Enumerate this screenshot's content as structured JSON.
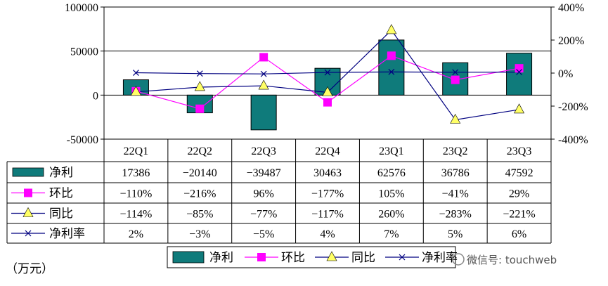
{
  "chart_data": {
    "type": "bar",
    "unit_label": "（万元）",
    "categories": [
      "22Q1",
      "22Q2",
      "22Q3",
      "22Q4",
      "23Q1",
      "23Q2",
      "23Q3"
    ],
    "left_axis": {
      "ticks": [
        "100000",
        "50000",
        "0",
        "-50000"
      ],
      "ylim": [
        -50000,
        100000
      ]
    },
    "right_axis": {
      "ticks": [
        "400%",
        "200%",
        "0%",
        "-200%",
        "-400%"
      ],
      "ylim": [
        -400,
        400
      ]
    },
    "grid": "horizontal lines at 100000, 50000 and 0",
    "series": [
      {
        "name": "净利",
        "type": "bar",
        "axis": "left",
        "color": "#0f7b7b",
        "values": [
          17386,
          -20140,
          -39487,
          30463,
          62576,
          36786,
          47592
        ],
        "labels": [
          "17386",
          "−20140",
          "−39487",
          "30463",
          "62576",
          "36786",
          "47592"
        ]
      },
      {
        "name": "环比",
        "type": "line",
        "axis": "right",
        "color": "#ff00ff",
        "marker": "square",
        "values": [
          -110,
          -216,
          96,
          -177,
          105,
          -41,
          29
        ],
        "labels": [
          "−110%",
          "−216%",
          "96%",
          "−177%",
          "105%",
          "−41%",
          "29%"
        ]
      },
      {
        "name": "同比",
        "type": "line",
        "axis": "right",
        "color": "#000080",
        "marker": "triangle",
        "values": [
          -114,
          -85,
          -77,
          -117,
          260,
          -283,
          -221
        ],
        "labels": [
          "−114%",
          "−85%",
          "−77%",
          "−117%",
          "260%",
          "−283%",
          "−221%"
        ]
      },
      {
        "name": "净利率",
        "type": "line",
        "axis": "right",
        "color": "#000080",
        "marker": "x",
        "values": [
          2,
          -3,
          -5,
          4,
          7,
          5,
          6
        ],
        "labels": [
          "2%",
          "−3%",
          "−5%",
          "4%",
          "7%",
          "5%",
          "6%"
        ]
      }
    ],
    "legend": {
      "position": "bottom",
      "items": [
        "净利",
        "环比",
        "同比",
        "净利率"
      ]
    }
  },
  "watermark": "微信号: touchweb"
}
